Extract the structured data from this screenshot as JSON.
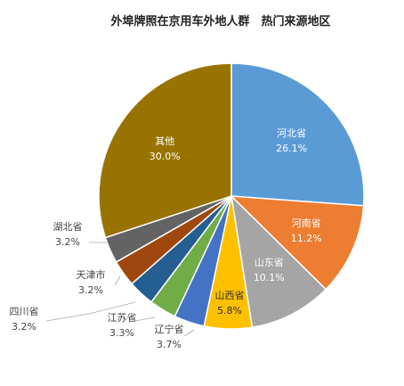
{
  "chart_data": {
    "type": "pie",
    "title": "外埠牌照在京用车外地人群　热门来源地区",
    "slices": [
      {
        "name": "河北省",
        "value": 26.1,
        "value_label": "26.1%",
        "color": "#5b9bd5"
      },
      {
        "name": "河南省",
        "value": 11.2,
        "value_label": "11.2%",
        "color": "#ed7d31"
      },
      {
        "name": "山东省",
        "value": 10.1,
        "value_label": "10.1%",
        "color": "#a5a5a5"
      },
      {
        "name": "山西省",
        "value": 5.8,
        "value_label": "5.8%",
        "color": "#ffc000"
      },
      {
        "name": "辽宁省",
        "value": 3.7,
        "value_label": "3.7%",
        "color": "#4472c4"
      },
      {
        "name": "江苏省",
        "value": 3.3,
        "value_label": "3.3%",
        "color": "#70ad47"
      },
      {
        "name": "四川省",
        "value": 3.2,
        "value_label": "3.2%",
        "color": "#255e91"
      },
      {
        "name": "天津市",
        "value": 3.2,
        "value_label": "3.2%",
        "color": "#9e480e"
      },
      {
        "name": "湖北省",
        "value": 3.2,
        "value_label": "3.2%",
        "color": "#636363"
      },
      {
        "name": "其他",
        "value": 30.0,
        "value_label": "30.0%",
        "color": "#997300"
      }
    ]
  }
}
